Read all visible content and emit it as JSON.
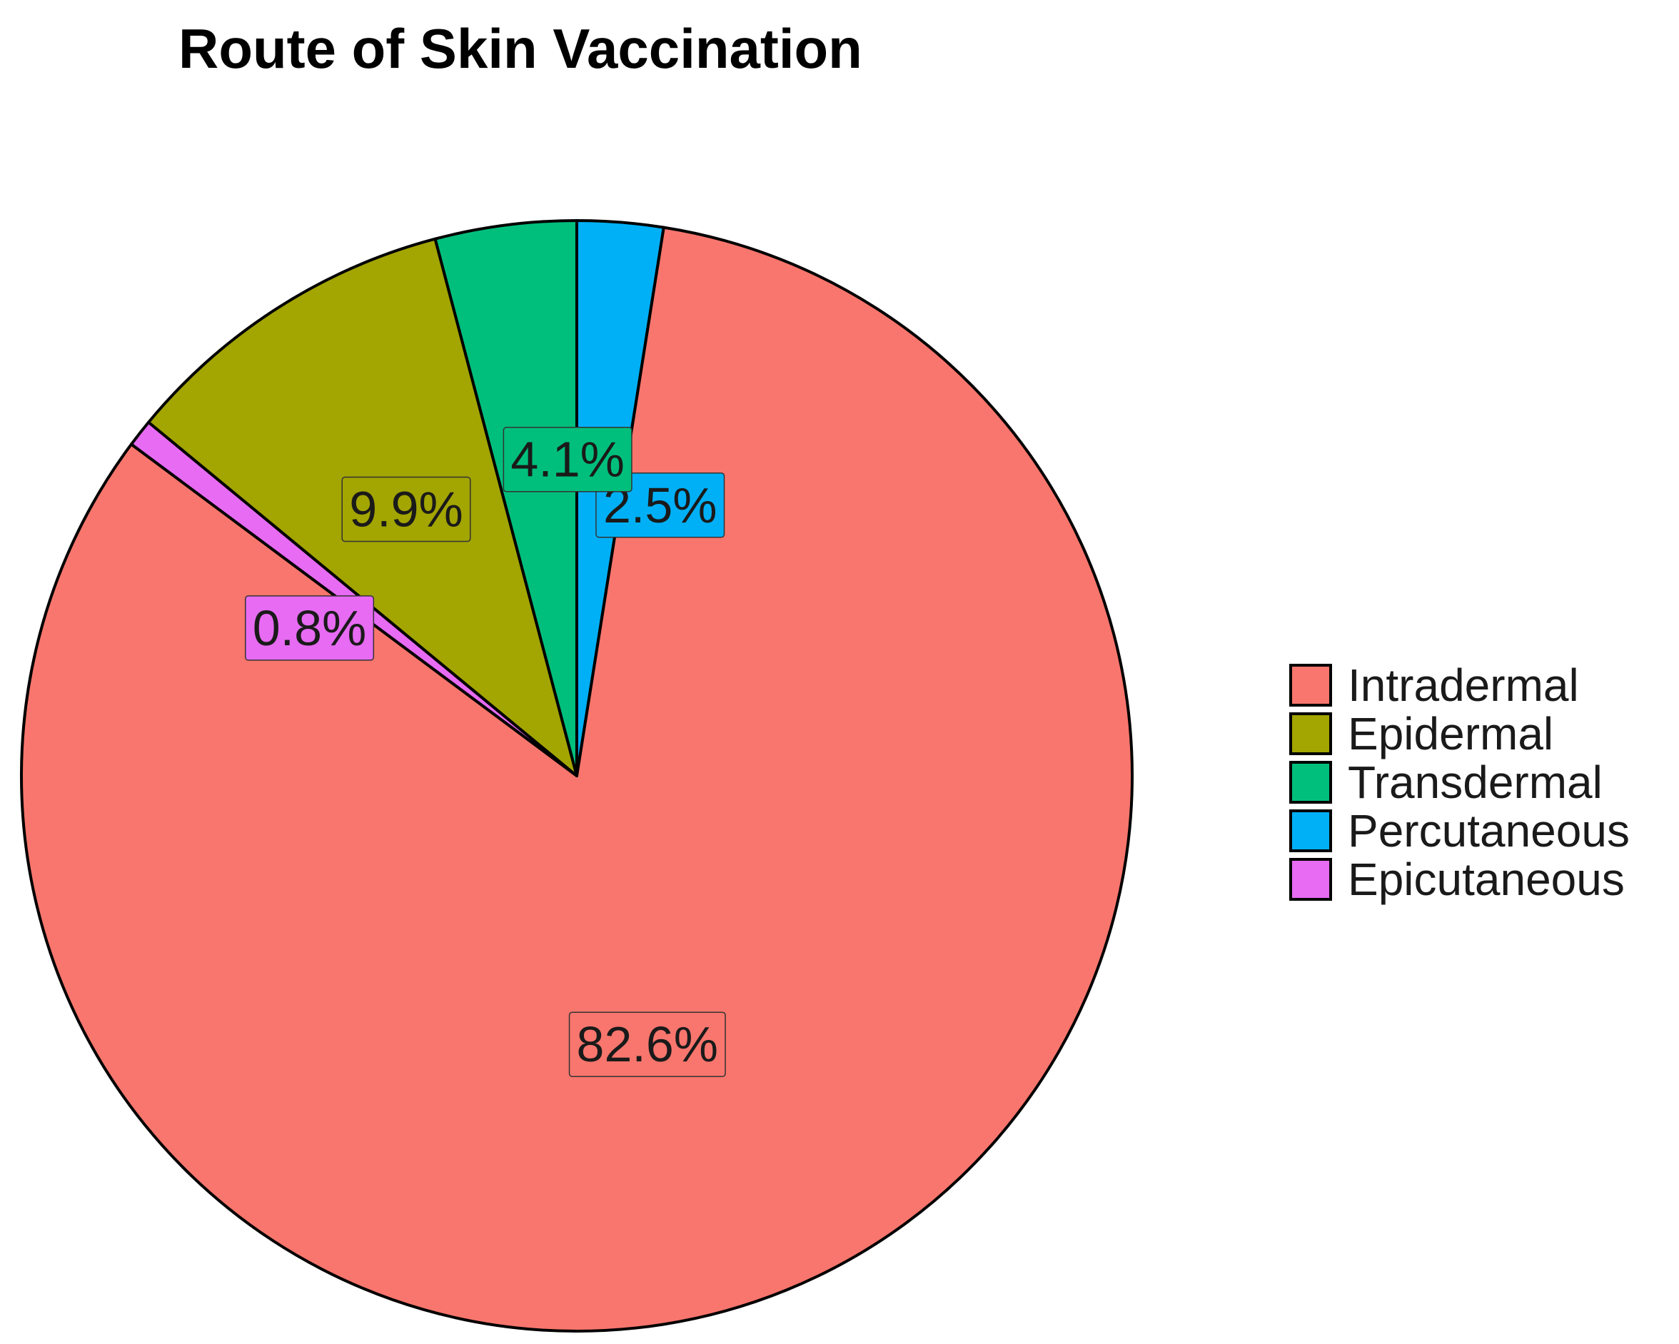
{
  "chart_data": {
    "type": "pie",
    "title": "Route of Skin Vaccination",
    "start_angle_deg": 0,
    "direction": "clockwise",
    "slices": [
      {
        "name": "Percutaneous",
        "value": 2.5,
        "label": "2.5%",
        "color": "#00B0F6"
      },
      {
        "name": "Intradermal",
        "value": 82.6,
        "label": "82.6%",
        "color": "#F8766D"
      },
      {
        "name": "Epicutaneous",
        "value": 0.8,
        "label": "0.8%",
        "color": "#E76BF3"
      },
      {
        "name": "Epidermal",
        "value": 9.9,
        "label": "9.9%",
        "color": "#A3A500"
      },
      {
        "name": "Transdermal",
        "value": 4.1,
        "label": "4.1%",
        "color": "#00BF7D"
      }
    ],
    "legend": {
      "position": "right",
      "entries": [
        {
          "name": "Intradermal",
          "color": "#F8766D"
        },
        {
          "name": "Epidermal",
          "color": "#A3A500"
        },
        {
          "name": "Transdermal",
          "color": "#00BF7D"
        },
        {
          "name": "Percutaneous",
          "color": "#00B0F6"
        },
        {
          "name": "Epicutaneous",
          "color": "#E76BF3"
        }
      ]
    }
  }
}
